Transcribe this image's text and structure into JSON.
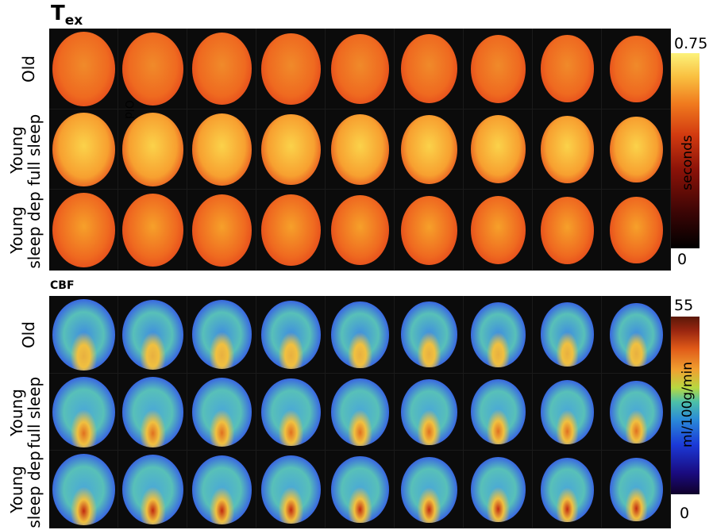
{
  "figure": {
    "tex": {
      "title_main": "T",
      "title_sub": "ex",
      "rows": [
        "Old",
        "Young full sleep",
        "Young sleep dep"
      ],
      "row_lines": [
        [
          "Old"
        ],
        [
          "Young",
          "full sleep"
        ],
        [
          "Young",
          "sleep dep"
        ]
      ],
      "columns": 9,
      "colorbar": {
        "max": "0.75",
        "min": "0",
        "label": "seconds",
        "colormap": "hot"
      },
      "stray_label": "Old"
    },
    "cbf": {
      "title": "CBF",
      "rows": [
        "Old",
        "Young full sleep",
        "Young sleep dep"
      ],
      "row_lines": [
        [
          "Old"
        ],
        [
          "Young",
          "full sleep"
        ],
        [
          "Young",
          "sleep dep"
        ]
      ],
      "columns": 9,
      "colorbar": {
        "max": "55",
        "min": "0",
        "label": "ml/100g/min",
        "colormap": "jet"
      }
    }
  }
}
